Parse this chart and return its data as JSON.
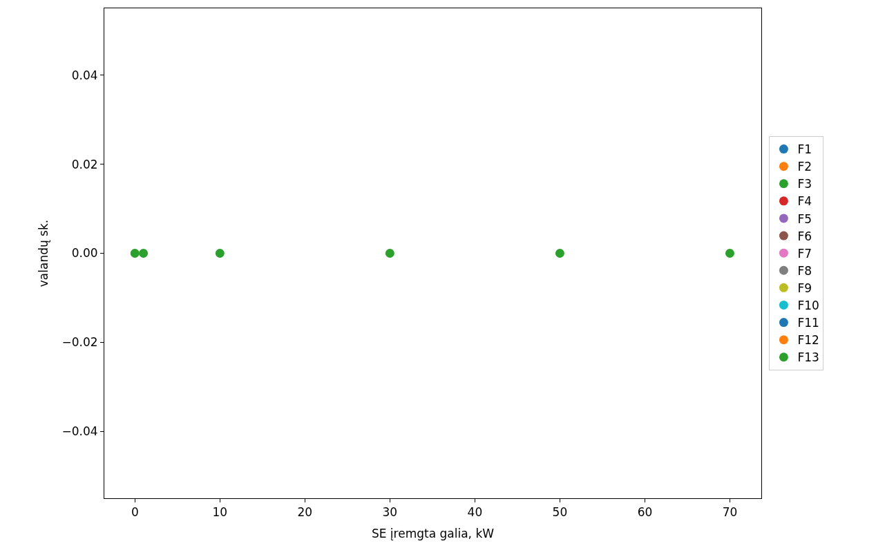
{
  "chart_data": {
    "type": "scatter",
    "xlabel": "SE įremgta galia, kW",
    "ylabel": "valandų sk.",
    "x": [
      0,
      1,
      10,
      30,
      50,
      70
    ],
    "series": [
      {
        "name": "F1",
        "color": "#1f77b4",
        "values": [
          null,
          null,
          null,
          null,
          null,
          null
        ]
      },
      {
        "name": "F2",
        "color": "#ff7f0e",
        "values": [
          null,
          null,
          null,
          null,
          null,
          null
        ]
      },
      {
        "name": "F3",
        "color": "#2ca02c",
        "values": [
          null,
          null,
          null,
          null,
          null,
          null
        ]
      },
      {
        "name": "F4",
        "color": "#d62728",
        "values": [
          null,
          null,
          null,
          null,
          null,
          null
        ]
      },
      {
        "name": "F5",
        "color": "#9467bd",
        "values": [
          null,
          null,
          null,
          null,
          null,
          null
        ]
      },
      {
        "name": "F6",
        "color": "#8c564b",
        "values": [
          null,
          null,
          null,
          null,
          null,
          null
        ]
      },
      {
        "name": "F7",
        "color": "#e377c2",
        "values": [
          null,
          null,
          null,
          null,
          null,
          null
        ]
      },
      {
        "name": "F8",
        "color": "#7f7f7f",
        "values": [
          null,
          null,
          null,
          null,
          null,
          null
        ]
      },
      {
        "name": "F9",
        "color": "#bcbd22",
        "values": [
          null,
          null,
          null,
          null,
          null,
          null
        ]
      },
      {
        "name": "F10",
        "color": "#17becf",
        "values": [
          null,
          null,
          null,
          null,
          null,
          null
        ]
      },
      {
        "name": "F11",
        "color": "#1f77b4",
        "values": [
          null,
          null,
          null,
          null,
          null,
          null
        ]
      },
      {
        "name": "F12",
        "color": "#ff7f0e",
        "values": [
          null,
          null,
          null,
          null,
          null,
          null
        ]
      },
      {
        "name": "F13",
        "color": "#2ca02c",
        "values": [
          0,
          0,
          0,
          0,
          0,
          0
        ]
      }
    ],
    "xlim": [
      -3.6,
      73.7
    ],
    "xticks": [
      0,
      10,
      20,
      30,
      40,
      50,
      60,
      70
    ],
    "ylim": [
      -0.055,
      0.055
    ],
    "yticks": [
      {
        "value": -0.04,
        "label": "−0.04"
      },
      {
        "value": -0.02,
        "label": "−0.02"
      },
      {
        "value": 0,
        "label": "0.00"
      },
      {
        "value": 0.02,
        "label": "0.02"
      },
      {
        "value": 0.04,
        "label": "0.04"
      }
    ],
    "legend": "right",
    "marker": "circle"
  }
}
